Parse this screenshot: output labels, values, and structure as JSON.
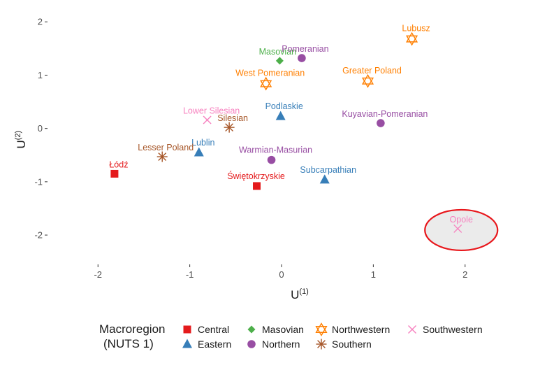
{
  "chart_data": {
    "type": "scatter",
    "xlabel": "U",
    "xlabel_sup": "(1)",
    "ylabel": "U",
    "ylabel_sup": "(2)",
    "xlim": [
      -2.55,
      2.55
    ],
    "ylim": [
      -2.55,
      2.2
    ],
    "x_ticks": [
      -2,
      -1,
      0,
      1,
      2
    ],
    "y_ticks": [
      -2,
      -1,
      0,
      1,
      2
    ],
    "grid": false,
    "legend": {
      "title_line1": "Macroregion",
      "title_line2": "(NUTS 1)",
      "placement": "bottom",
      "entries": [
        {
          "name": "Central",
          "color": "#e41a1c",
          "shape": "square"
        },
        {
          "name": "Eastern",
          "color": "#377eb8",
          "shape": "triangle"
        },
        {
          "name": "Masovian",
          "color": "#4daf4a",
          "shape": "diamond"
        },
        {
          "name": "Northern",
          "color": "#984ea3",
          "shape": "circle"
        },
        {
          "name": "Northwestern",
          "color": "#ff7f00",
          "shape": "star-of-david"
        },
        {
          "name": "Southern",
          "color": "#a65628",
          "shape": "asterisk"
        },
        {
          "name": "Southwestern",
          "color": "#f781bf",
          "shape": "cross"
        }
      ]
    },
    "points": [
      {
        "label": "Łódź",
        "x": -1.82,
        "y": -0.85,
        "group": "Central"
      },
      {
        "label": "Świętokrzyskie",
        "x": -0.27,
        "y": -1.08,
        "group": "Central"
      },
      {
        "label": "Lublin",
        "x": -0.9,
        "y": -0.45,
        "group": "Eastern"
      },
      {
        "label": "Podlaskie",
        "x": -0.01,
        "y": 0.23,
        "group": "Eastern"
      },
      {
        "label": "Subcarpathian",
        "x": 0.47,
        "y": -0.96,
        "group": "Eastern"
      },
      {
        "label": "Masovian",
        "x": -0.02,
        "y": 1.27,
        "group": "Masovian"
      },
      {
        "label": "Pomeranian",
        "x": 0.22,
        "y": 1.32,
        "group": "Northern"
      },
      {
        "label": "Kuyavian-Pomeranian",
        "x": 1.08,
        "y": 0.1,
        "group": "Northern"
      },
      {
        "label": "Warmian-Masurian",
        "x": -0.11,
        "y": -0.59,
        "group": "Northern"
      },
      {
        "label": "Lubusz",
        "x": 1.42,
        "y": 1.68,
        "group": "Northwestern"
      },
      {
        "label": "Greater Poland",
        "x": 0.94,
        "y": 0.89,
        "group": "Northwestern"
      },
      {
        "label": "West Pomeranian",
        "x": -0.17,
        "y": 0.84,
        "group": "Northwestern"
      },
      {
        "label": "Silesian",
        "x": -0.57,
        "y": 0.02,
        "group": "Southern"
      },
      {
        "label": "Lesser Poland",
        "x": -1.3,
        "y": -0.53,
        "group": "Southern"
      },
      {
        "label": "Lower Silesian",
        "x": -0.81,
        "y": 0.16,
        "group": "Southwestern"
      },
      {
        "label": "Opole",
        "x": 1.92,
        "y": -1.88,
        "group": "Southwestern"
      }
    ],
    "highlight": {
      "target": "Opole",
      "shape": "ellipse",
      "color": "#e8161b",
      "fill": "#ebebeb"
    }
  }
}
